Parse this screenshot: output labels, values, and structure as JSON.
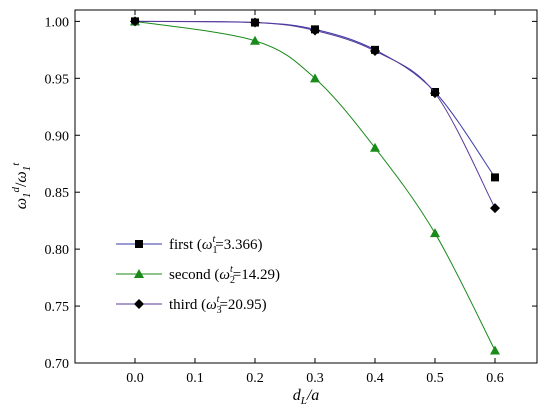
{
  "chart_data": {
    "type": "line",
    "xlabel": "d_L/a",
    "ylabel": "ω1^d / ω1^t",
    "xlim": [
      -0.1,
      0.67
    ],
    "ylim": [
      0.7,
      1.01
    ],
    "xticks": [
      "0.0",
      "0.1",
      "0.2",
      "0.3",
      "0.4",
      "0.5",
      "0.6"
    ],
    "yticks": [
      "0.70",
      "0.75",
      "0.80",
      "0.85",
      "0.90",
      "0.95",
      "1.00"
    ],
    "grid": false,
    "legend_position": "bottom-left",
    "series": [
      {
        "name": "first (ω1t=3.366)",
        "legend_label": {
          "prefix": "first (",
          "omega": "ω",
          "sub": "1",
          "sup": "t",
          "value": "=3.366)"
        },
        "marker": "square",
        "color": "#000000",
        "line_color": "#3a3aa8",
        "x": [
          0.0,
          0.2,
          0.3,
          0.4,
          0.5,
          0.6
        ],
        "y": [
          1.0,
          0.999,
          0.993,
          0.975,
          0.938,
          0.863
        ]
      },
      {
        "name": "second (ω2t=14.29)",
        "legend_label": {
          "prefix": "second (",
          "omega": "ω",
          "sub": "2",
          "sup": "t",
          "value": "=14.29)"
        },
        "marker": "triangle",
        "color": "#1a8a1a",
        "line_color": "#1a8a1a",
        "x": [
          0.0,
          0.2,
          0.3,
          0.4,
          0.5,
          0.6
        ],
        "y": [
          1.0,
          0.983,
          0.95,
          0.889,
          0.814,
          0.711
        ]
      },
      {
        "name": "third (ω3t=20.95)",
        "legend_label": {
          "prefix": "third (",
          "omega": "ω",
          "sub": "3",
          "sup": "t",
          "value": "=20.95)"
        },
        "marker": "diamond",
        "color": "#000000",
        "line_color": "#5a3a9a",
        "x": [
          0.0,
          0.2,
          0.3,
          0.4,
          0.5,
          0.6
        ],
        "y": [
          1.0,
          0.999,
          0.992,
          0.974,
          0.937,
          0.836
        ]
      }
    ]
  }
}
